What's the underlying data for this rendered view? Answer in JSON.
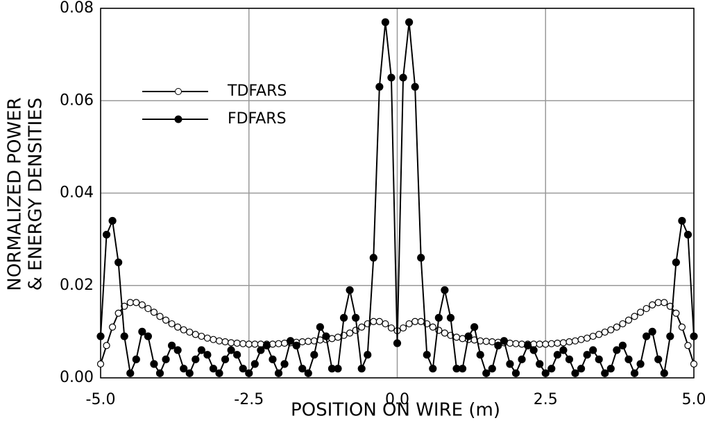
{
  "chart_data": {
    "type": "line",
    "xlabel": "POSITION ON WIRE (m)",
    "ylabel": [
      "NORMALIZED POWER",
      "& ENERGY DENSITIES"
    ],
    "x": [
      -5,
      -4.9,
      -4.8,
      -4.7,
      -4.6,
      -4.5,
      -4.4,
      -4.3,
      -4.2,
      -4.1,
      -4,
      -3.9,
      -3.8,
      -3.7,
      -3.6,
      -3.5,
      -3.4,
      -3.3,
      -3.2,
      -3.1,
      -3,
      -2.9,
      -2.8,
      -2.7,
      -2.6,
      -2.5,
      -2.4,
      -2.3,
      -2.2,
      -2.1,
      -2,
      -1.9,
      -1.8,
      -1.7,
      -1.6,
      -1.5,
      -1.4,
      -1.3,
      -1.2,
      -1.1,
      -1,
      -0.9,
      -0.8,
      -0.7,
      -0.6,
      -0.5,
      -0.4,
      -0.3,
      -0.2,
      -0.1,
      0,
      0.1,
      0.2,
      0.3,
      0.4,
      0.5,
      0.6,
      0.7,
      0.8,
      0.9,
      1,
      1.1,
      1.2,
      1.3,
      1.4,
      1.5,
      1.6,
      1.7,
      1.8,
      1.9,
      2,
      2.1,
      2.2,
      2.3,
      2.4,
      2.5,
      2.6,
      2.7,
      2.8,
      2.9,
      3,
      3.1,
      3.2,
      3.3,
      3.4,
      3.5,
      3.6,
      3.7,
      3.8,
      3.9,
      4,
      4.1,
      4.2,
      4.3,
      4.4,
      4.5,
      4.6,
      4.7,
      4.8,
      4.9,
      5
    ],
    "series": [
      {
        "name": "TDFARS",
        "color": "#000000",
        "marker": "open",
        "values": [
          0.003,
          0.007,
          0.011,
          0.014,
          0.0155,
          0.0163,
          0.0163,
          0.0158,
          0.015,
          0.0142,
          0.0133,
          0.0125,
          0.0117,
          0.011,
          0.0104,
          0.0099,
          0.0094,
          0.009,
          0.0086,
          0.0083,
          0.008,
          0.0078,
          0.0076,
          0.0075,
          0.0074,
          0.0073,
          0.0073,
          0.0073,
          0.0073,
          0.0073,
          0.0074,
          0.0075,
          0.0076,
          0.0077,
          0.0078,
          0.0079,
          0.008,
          0.0082,
          0.0083,
          0.0085,
          0.0088,
          0.0092,
          0.0097,
          0.0103,
          0.011,
          0.0117,
          0.0122,
          0.0122,
          0.0117,
          0.0108,
          0.0102,
          0.0108,
          0.0117,
          0.0122,
          0.0122,
          0.0117,
          0.011,
          0.0103,
          0.0097,
          0.0092,
          0.0088,
          0.0085,
          0.0083,
          0.0082,
          0.008,
          0.0079,
          0.0078,
          0.0077,
          0.0076,
          0.0075,
          0.0074,
          0.0073,
          0.0073,
          0.0073,
          0.0073,
          0.0073,
          0.0074,
          0.0075,
          0.0076,
          0.0078,
          0.008,
          0.0083,
          0.0086,
          0.009,
          0.0094,
          0.0099,
          0.0104,
          0.011,
          0.0117,
          0.0125,
          0.0133,
          0.0142,
          0.015,
          0.0158,
          0.0163,
          0.0163,
          0.0155,
          0.014,
          0.011,
          0.007,
          0.003
        ]
      },
      {
        "name": "FDFARS",
        "color": "#000000",
        "marker": "filled",
        "values": [
          0.009,
          0.031,
          0.034,
          0.025,
          0.009,
          0.001,
          0.004,
          0.01,
          0.009,
          0.003,
          0.001,
          0.004,
          0.007,
          0.006,
          0.002,
          0.001,
          0.004,
          0.006,
          0.005,
          0.002,
          0.001,
          0.004,
          0.006,
          0.005,
          0.002,
          0.001,
          0.003,
          0.006,
          0.007,
          0.004,
          0.001,
          0.003,
          0.008,
          0.007,
          0.002,
          0.001,
          0.005,
          0.011,
          0.009,
          0.002,
          0.002,
          0.013,
          0.019,
          0.013,
          0.002,
          0.005,
          0.026,
          0.063,
          0.077,
          0.065,
          0.0075,
          0.065,
          0.077,
          0.063,
          0.026,
          0.005,
          0.002,
          0.013,
          0.019,
          0.013,
          0.002,
          0.002,
          0.009,
          0.011,
          0.005,
          0.001,
          0.002,
          0.007,
          0.008,
          0.003,
          0.001,
          0.004,
          0.007,
          0.006,
          0.003,
          0.001,
          0.002,
          0.005,
          0.006,
          0.004,
          0.001,
          0.002,
          0.005,
          0.006,
          0.004,
          0.001,
          0.002,
          0.006,
          0.007,
          0.004,
          0.001,
          0.003,
          0.009,
          0.01,
          0.004,
          0.001,
          0.009,
          0.025,
          0.034,
          0.031,
          0.009
        ]
      }
    ],
    "xlim": [
      -5,
      5
    ],
    "xticks": [
      {
        "value": -5,
        "label": "-5.0"
      },
      -2.5,
      {
        "value": 0,
        "label": "0.0"
      },
      2.5,
      {
        "value": 5,
        "label": "5.0"
      }
    ],
    "ylim": [
      0,
      0.08
    ],
    "yticks": [
      {
        "value": 0,
        "label": "0.00"
      },
      {
        "value": 0.02,
        "label": "0.02"
      },
      {
        "value": 0.04,
        "label": "0.04"
      },
      {
        "value": 0.06,
        "label": "0.06"
      },
      {
        "value": 0.08,
        "label": "0.08"
      }
    ],
    "grid": true,
    "legend": "upper left"
  }
}
